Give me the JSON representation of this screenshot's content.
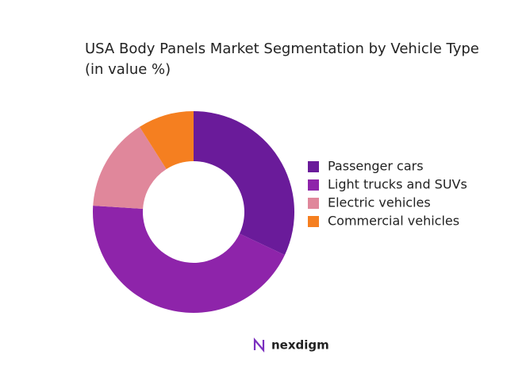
{
  "chart_data": {
    "type": "donut",
    "title": "USA Body Panels Market Segmentation by Vehicle Type",
    "subtitle": "(in value %)",
    "categories": [
      "Passenger cars",
      "Light trucks and SUVs",
      "Electric vehicles",
      "Commercial vehicles"
    ],
    "values": [
      32,
      44,
      15,
      9
    ],
    "colors": [
      "#6a1b9a",
      "#8e24aa",
      "#e0879b",
      "#f57f20"
    ],
    "legend": "right"
  },
  "footer": {
    "logo": "nexdigm"
  }
}
